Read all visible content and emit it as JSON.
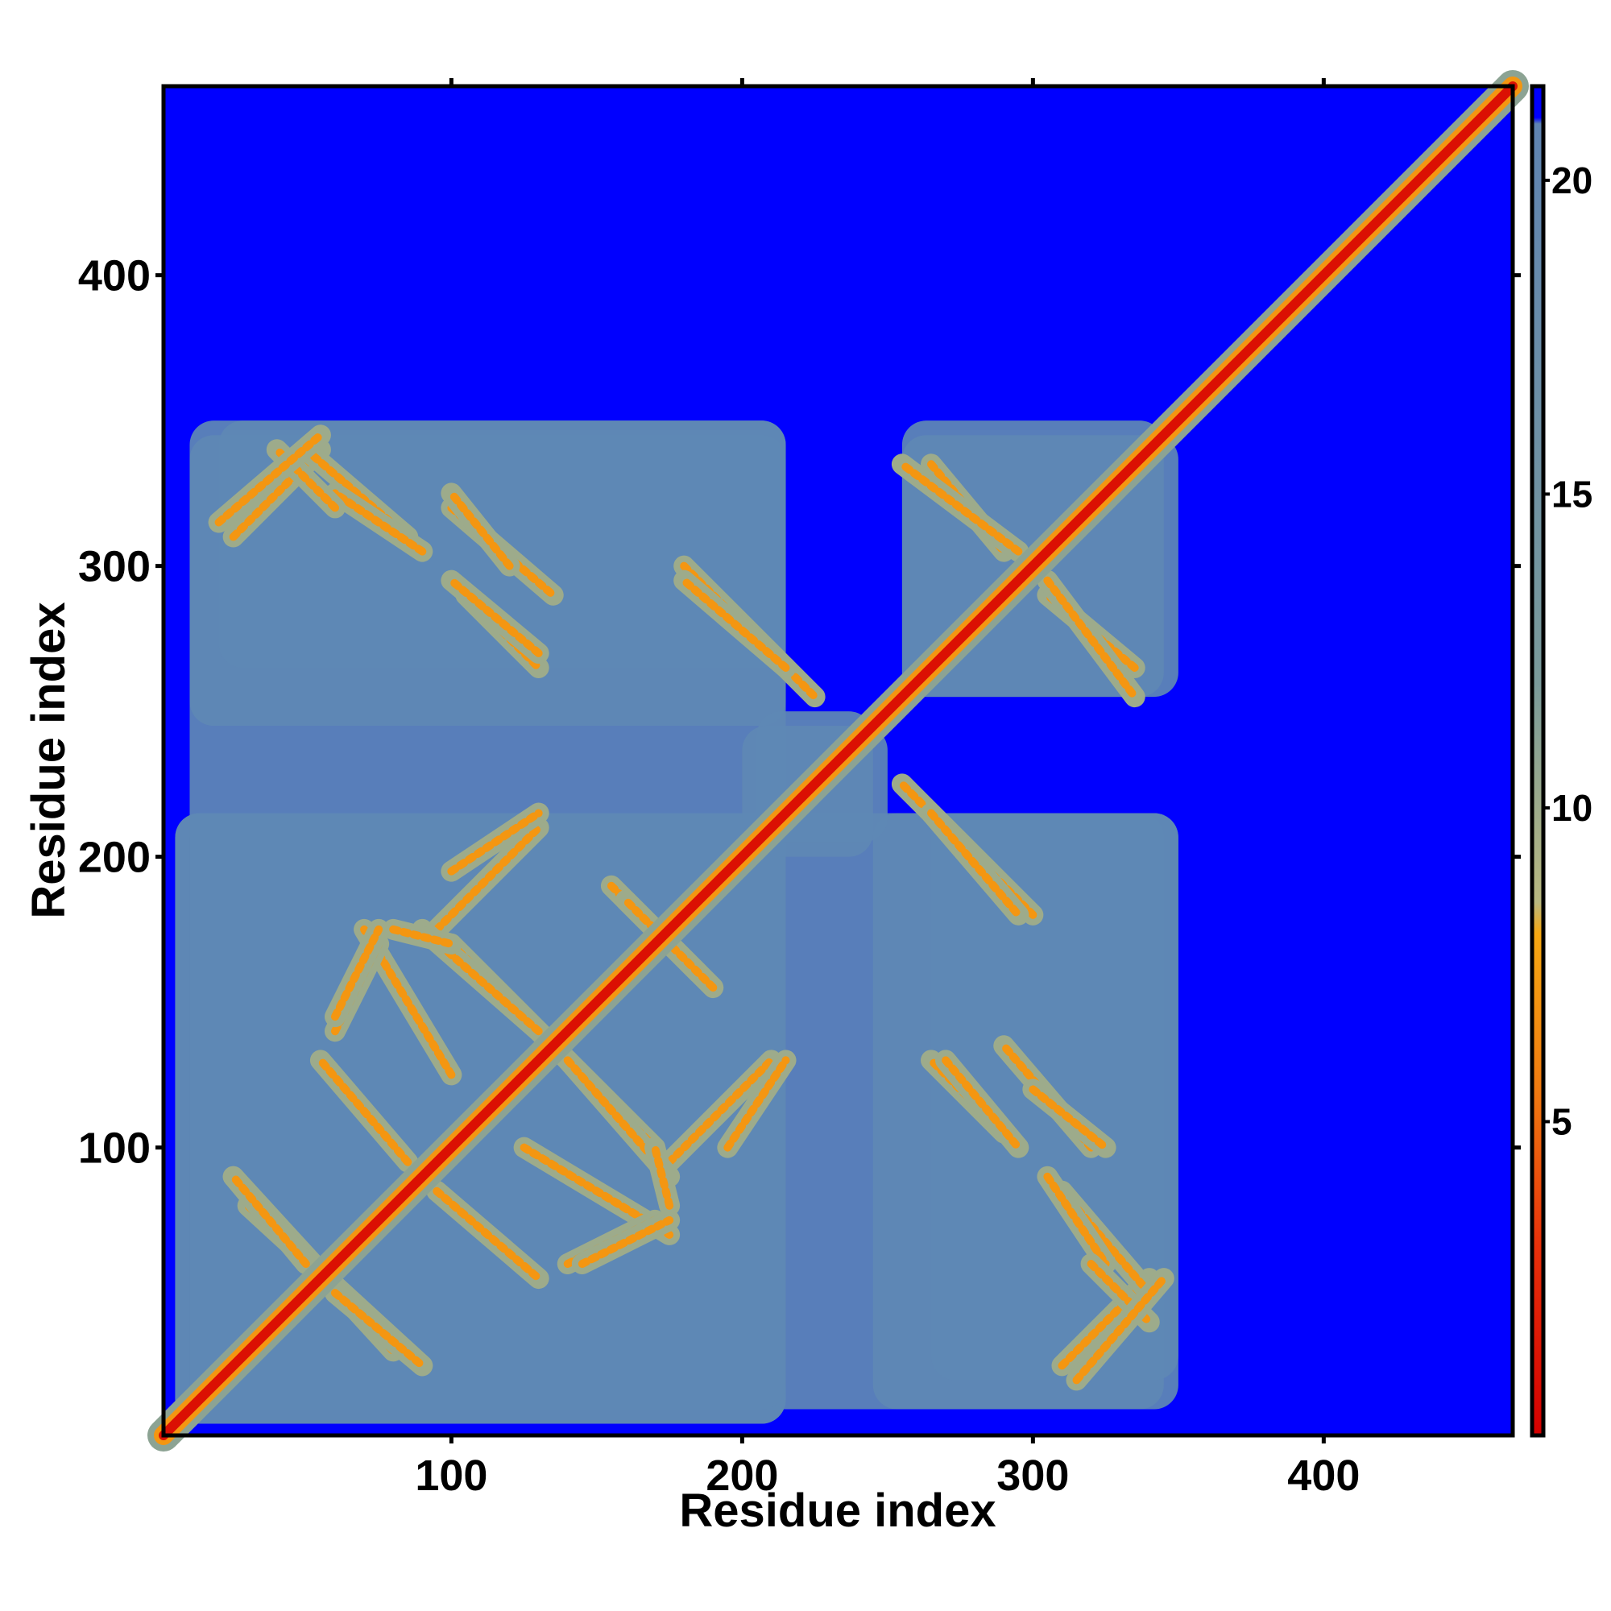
{
  "chart_data": {
    "type": "heatmap",
    "title": "",
    "xlabel": "Residue index",
    "ylabel": "Residue index",
    "n_residues": 465,
    "xlim": [
      1,
      465
    ],
    "ylim": [
      1,
      465
    ],
    "x_ticks": [
      100,
      200,
      300,
      400
    ],
    "y_ticks": [
      100,
      200,
      300,
      400
    ],
    "colorbar": {
      "range": [
        0,
        21.5
      ],
      "ticks": [
        5,
        10,
        15,
        20
      ],
      "stops": [
        {
          "value": 0,
          "color": "#d40000"
        },
        {
          "value": 3,
          "color": "#e8300a"
        },
        {
          "value": 5.5,
          "color": "#f07a10"
        },
        {
          "value": 8,
          "color": "#f6a812"
        },
        {
          "value": 8.5,
          "color": "#b8b880"
        },
        {
          "value": 12,
          "color": "#7a9a9a"
        },
        {
          "value": 20.9,
          "color": "#5f84b2"
        },
        {
          "value": 21,
          "color": "#0000ff"
        }
      ]
    },
    "background_value": 21,
    "background_color": "#0000ff",
    "contact_color": "#5f88b5",
    "diagonal": {
      "from": 1,
      "to": 465,
      "core_value": 1,
      "description": "main diagonal"
    },
    "regions": [
      {
        "x": [
          5,
          215
        ],
        "y": [
          5,
          215
        ]
      },
      {
        "x": [
          10,
          345
        ],
        "y": [
          10,
          215
        ]
      },
      {
        "x": [
          10,
          215
        ],
        "y": [
          245,
          350
        ]
      },
      {
        "x": [
          255,
          345
        ],
        "y": [
          255,
          350
        ]
      },
      {
        "x": [
          265,
          350
        ],
        "y": [
          20,
          215
        ]
      },
      {
        "x": [
          205,
          245
        ],
        "y": [
          200,
          250
        ]
      }
    ],
    "cross_contacts": [
      {
        "from": [
          25,
          310
        ],
        "to": [
          55,
          340
        ]
      },
      {
        "from": [
          50,
          340
        ],
        "to": [
          85,
          310
        ]
      },
      {
        "from": [
          100,
          320
        ],
        "to": [
          135,
          290
        ]
      },
      {
        "from": [
          105,
          290
        ],
        "to": [
          130,
          265
        ]
      },
      {
        "from": [
          180,
          300
        ],
        "to": [
          225,
          255
        ]
      },
      {
        "from": [
          265,
          335
        ],
        "to": [
          290,
          305
        ]
      },
      {
        "from": [
          305,
          295
        ],
        "to": [
          335,
          255
        ]
      },
      {
        "from": [
          25,
          90
        ],
        "to": [
          80,
          30
        ]
      },
      {
        "from": [
          60,
          50
        ],
        "to": [
          90,
          25
        ]
      },
      {
        "from": [
          95,
          85
        ],
        "to": [
          130,
          55
        ]
      },
      {
        "from": [
          125,
          100
        ],
        "to": [
          175,
          70
        ]
      },
      {
        "from": [
          140,
          60
        ],
        "to": [
          170,
          75
        ]
      },
      {
        "from": [
          175,
          95
        ],
        "to": [
          210,
          130
        ]
      },
      {
        "from": [
          100,
          195
        ],
        "to": [
          130,
          215
        ]
      },
      {
        "from": [
          100,
          170
        ],
        "to": [
          135,
          135
        ]
      },
      {
        "from": [
          140,
          130
        ],
        "to": [
          175,
          90
        ]
      },
      {
        "from": [
          155,
          190
        ],
        "to": [
          185,
          160
        ]
      },
      {
        "from": [
          60,
          145
        ],
        "to": [
          75,
          175
        ]
      },
      {
        "from": [
          80,
          175
        ],
        "to": [
          100,
          170
        ]
      },
      {
        "from": [
          265,
          215
        ],
        "to": [
          295,
          180
        ]
      },
      {
        "from": [
          270,
          130
        ],
        "to": [
          295,
          100
        ]
      },
      {
        "from": [
          300,
          120
        ],
        "to": [
          325,
          100
        ]
      },
      {
        "from": [
          305,
          90
        ],
        "to": [
          325,
          60
        ]
      },
      {
        "from": [
          320,
          60
        ],
        "to": [
          340,
          40
        ]
      },
      {
        "from": [
          315,
          20
        ],
        "to": [
          345,
          55
        ]
      }
    ]
  }
}
